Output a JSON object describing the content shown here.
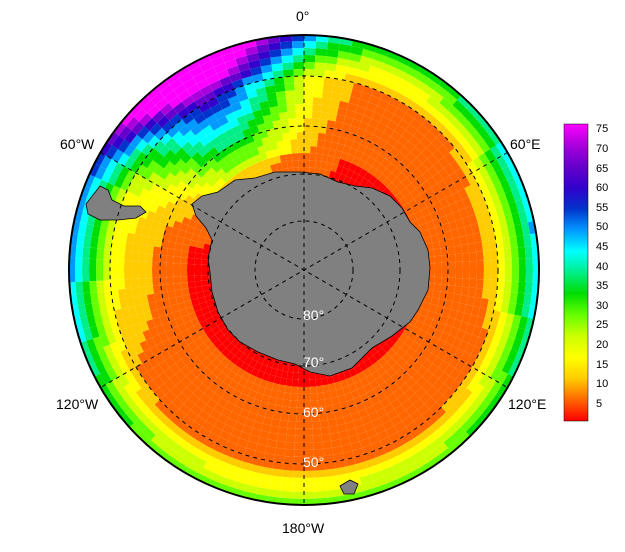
{
  "map": {
    "projection": "south-polar-stereographic",
    "longitude_labels": {
      "top": "0°",
      "upper_left": "60°W",
      "upper_right": "60°E",
      "lower_left": "120°W",
      "lower_right": "120°E",
      "bottom": "180°W"
    },
    "latitude_labels": [
      "80°",
      "70°",
      "60°",
      "50°"
    ],
    "colors": {
      "land": "#808080",
      "graticule": "#000000",
      "latitude_label_text": "#ffffff"
    }
  },
  "colorbar": {
    "ticks": [
      "75",
      "70",
      "65",
      "60",
      "55",
      "50",
      "45",
      "40",
      "35",
      "30",
      "25",
      "20",
      "15",
      "10",
      "5"
    ],
    "range": [
      1,
      77
    ],
    "palette": [
      "#ff0000",
      "#ff6600",
      "#ffcc00",
      "#ffff00",
      "#ccff00",
      "#66ff00",
      "#00dd00",
      "#00ee88",
      "#00ffff",
      "#0099ff",
      "#0033cc",
      "#3300cc",
      "#6600cc",
      "#aa00dd",
      "#ff00ff"
    ]
  }
}
